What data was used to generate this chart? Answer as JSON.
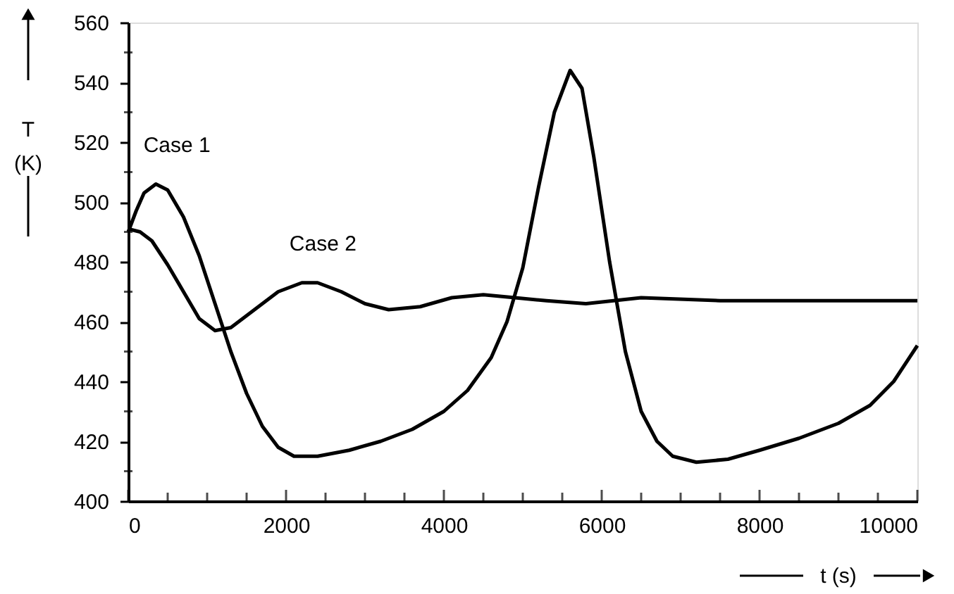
{
  "chart_data": {
    "type": "line",
    "xlabel": "t (s)",
    "ylabel": "T (K)",
    "xlim": [
      0,
      10000
    ],
    "xticks": [
      0,
      2000,
      4000,
      6000,
      8000,
      10000
    ],
    "ylim": [
      400,
      560
    ],
    "yticks": [
      400,
      420,
      440,
      460,
      480,
      500,
      520,
      540,
      560
    ],
    "grid": false,
    "marker": "none",
    "line_style": "solid",
    "series": [
      {
        "name": "Case 1",
        "color": "#000000",
        "x": [
          0,
          100,
          200,
          350,
          500,
          700,
          900,
          1100,
          1300,
          1500,
          1700,
          1900,
          2100,
          2400,
          2800,
          3200,
          3600,
          4000,
          4300,
          4600,
          4800,
          5000,
          5200,
          5400,
          5600,
          5750,
          5900,
          6100,
          6300,
          6500,
          6700,
          6900,
          7200,
          7600,
          8000,
          8500,
          9000,
          9400,
          9700,
          10000
        ],
        "values": [
          490,
          497,
          503,
          506,
          504,
          495,
          482,
          466,
          450,
          436,
          425,
          418,
          415,
          415,
          417,
          420,
          424,
          430,
          437,
          448,
          460,
          478,
          505,
          530,
          544,
          538,
          515,
          480,
          450,
          430,
          420,
          415,
          413,
          414,
          417,
          421,
          426,
          432,
          440,
          452
        ]
      },
      {
        "name": "Case 2",
        "color": "#000000",
        "x": [
          0,
          150,
          300,
          500,
          700,
          900,
          1100,
          1300,
          1600,
          1900,
          2200,
          2400,
          2700,
          3000,
          3300,
          3700,
          4100,
          4500,
          4900,
          5300,
          5800,
          6500,
          7500,
          10000
        ],
        "values": [
          491,
          490,
          487,
          479,
          470,
          461,
          457,
          458,
          464,
          470,
          473,
          473,
          470,
          466,
          464,
          465,
          468,
          469,
          468,
          467,
          466,
          468,
          467,
          467
        ]
      }
    ]
  }
}
